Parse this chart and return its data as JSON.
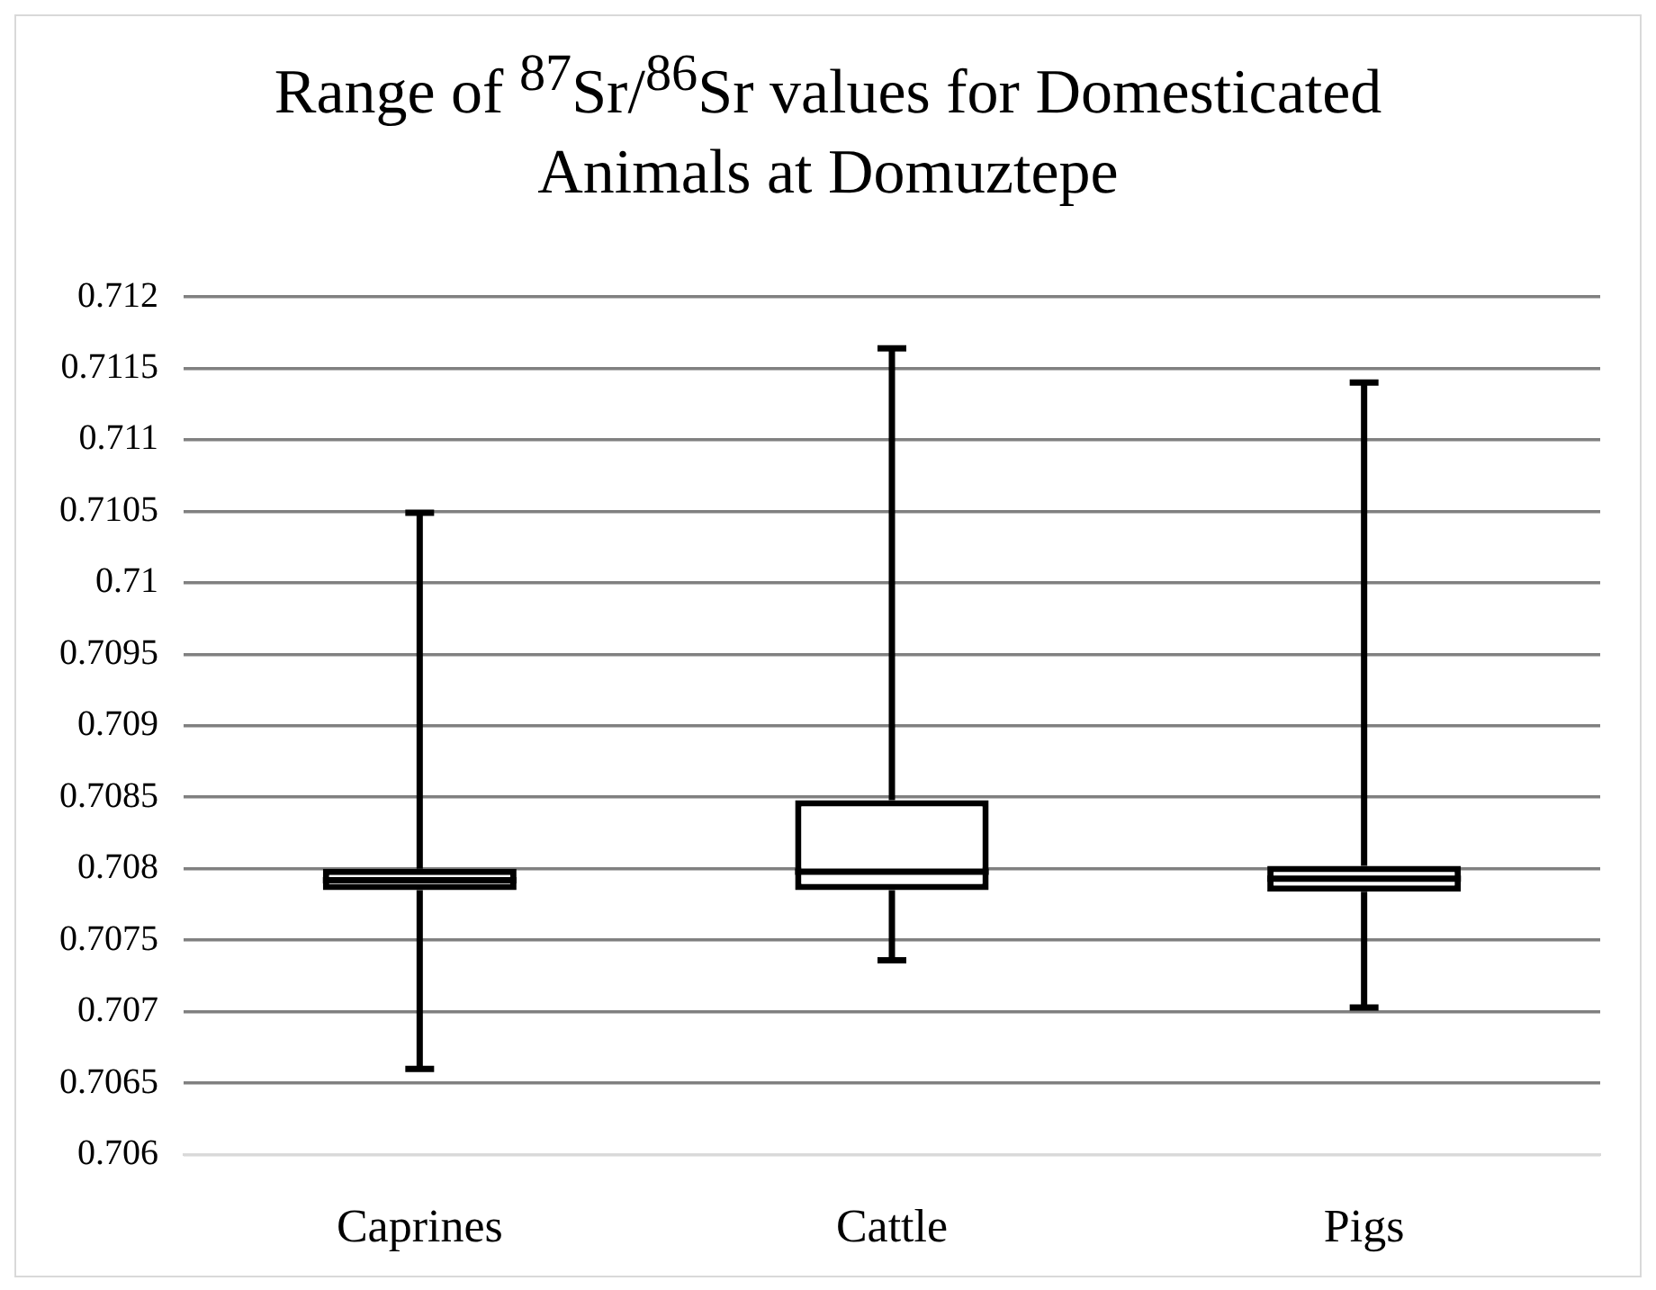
{
  "chart_data": {
    "type": "box",
    "title": "Range of $^{87}$Sr/$^{86}$Sr values for Domesticated Animals at Domuztepe",
    "categories": [
      "Caprines",
      "Cattle",
      "Pigs"
    ],
    "boxes": [
      {
        "low": 0.7066,
        "q1": 0.70785,
        "median": 0.70792,
        "q3": 0.708,
        "high": 0.71049
      },
      {
        "low": 0.70736,
        "q1": 0.70785,
        "median": 0.70798,
        "q3": 0.70848,
        "high": 0.71164
      },
      {
        "low": 0.70703,
        "q1": 0.70784,
        "median": 0.70793,
        "q3": 0.70802,
        "high": 0.7114
      }
    ],
    "ylim": [
      0.706,
      0.712
    ],
    "yticks": [
      0.706,
      0.7065,
      0.707,
      0.7075,
      0.708,
      0.7085,
      0.709,
      0.7095,
      0.71,
      0.7105,
      0.711,
      0.7115,
      0.712
    ],
    "grid": "y"
  }
}
